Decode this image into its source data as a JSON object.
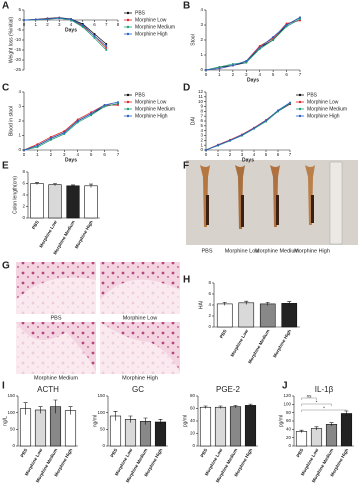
{
  "chart_data": [
    {
      "type": "line",
      "panel": "A",
      "xlabel": "Days",
      "ylabel": "Weight loss (%initial)",
      "x": [
        0,
        1,
        2,
        3,
        4,
        5,
        6,
        7
      ],
      "xlim": [
        0,
        8
      ],
      "xticks": [
        0,
        1,
        2,
        3,
        4,
        5,
        6,
        7,
        8
      ],
      "ylim": [
        -25,
        5
      ],
      "yticks": [
        5,
        0,
        -5,
        -10,
        -15,
        -20,
        -25
      ],
      "legend": true,
      "series": [
        {
          "name": "PBS",
          "color": "#111111",
          "values": [
            0,
            0.3,
            0.8,
            1.2,
            0.5,
            -2,
            -7,
            -12
          ]
        },
        {
          "name": "Morphine Low",
          "color": "#e0262a",
          "values": [
            0,
            0.2,
            0.6,
            1,
            0.2,
            -3,
            -8,
            -14
          ]
        },
        {
          "name": "Morphine Medium",
          "color": "#1fa27a",
          "values": [
            0,
            0.1,
            0.4,
            0.9,
            0,
            -3.5,
            -9,
            -15
          ]
        },
        {
          "name": "Morphine High",
          "color": "#2a62c9",
          "values": [
            0,
            0.2,
            0.5,
            1,
            0.3,
            -2.5,
            -8,
            -13
          ]
        }
      ]
    },
    {
      "type": "line",
      "panel": "B",
      "xlabel": "Days",
      "ylabel": "Stool",
      "x": [
        0,
        1,
        2,
        3,
        4,
        5,
        6,
        7
      ],
      "xlim": [
        0,
        7
      ],
      "xticks": [
        0,
        1,
        2,
        3,
        4,
        5,
        6,
        7
      ],
      "ylim": [
        0,
        4
      ],
      "yticks": [
        0,
        1,
        2,
        3,
        4
      ],
      "legend": false,
      "series": [
        {
          "name": "PBS",
          "color": "#111111",
          "values": [
            0,
            0.2,
            0.3,
            0.5,
            1.5,
            2,
            3,
            3.5
          ]
        },
        {
          "name": "Morphine Low",
          "color": "#e0262a",
          "values": [
            0,
            0.1,
            0.3,
            0.6,
            1.6,
            2.1,
            3.1,
            3.3
          ]
        },
        {
          "name": "Morphine Medium",
          "color": "#1fa27a",
          "values": [
            0,
            0.2,
            0.4,
            0.5,
            1.4,
            2,
            2.9,
            3.4
          ]
        },
        {
          "name": "Morphine High",
          "color": "#2a62c9",
          "values": [
            0,
            0.1,
            0.3,
            0.6,
            1.5,
            2.2,
            3,
            3.5
          ]
        }
      ]
    },
    {
      "type": "line",
      "panel": "C",
      "xlabel": "Days",
      "ylabel": "Blood in stool",
      "x": [
        0,
        1,
        2,
        3,
        4,
        5,
        6,
        7
      ],
      "xlim": [
        0,
        7
      ],
      "xticks": [
        0,
        1,
        2,
        3,
        4,
        5,
        6,
        7
      ],
      "ylim": [
        0,
        4
      ],
      "yticks": [
        0,
        1,
        2,
        3,
        4
      ],
      "legend": true,
      "series": [
        {
          "name": "PBS",
          "color": "#111111",
          "values": [
            0,
            0.3,
            0.8,
            1.2,
            2,
            2.5,
            3,
            3.2
          ]
        },
        {
          "name": "Morphine Low",
          "color": "#e0262a",
          "values": [
            0,
            0.4,
            0.9,
            1.3,
            2.1,
            2.6,
            3.1,
            3.1
          ]
        },
        {
          "name": "Morphine Medium",
          "color": "#1fa27a",
          "values": [
            0,
            0.2,
            0.7,
            1.1,
            1.9,
            2.4,
            3,
            3.2
          ]
        },
        {
          "name": "Morphine High",
          "color": "#2a62c9",
          "values": [
            0,
            0.3,
            0.8,
            1.2,
            2,
            2.5,
            3.1,
            3.3
          ]
        }
      ]
    },
    {
      "type": "line",
      "panel": "D",
      "xlabel": "Days",
      "ylabel": "DAI",
      "x": [
        0,
        1,
        2,
        3,
        4,
        5,
        6,
        7
      ],
      "xlim": [
        0,
        7
      ],
      "xticks": [
        0,
        1,
        2,
        3,
        4,
        5,
        6,
        7
      ],
      "ylim": [
        0,
        12
      ],
      "yticks": [
        0,
        1,
        2,
        3,
        4,
        5,
        6,
        7,
        8,
        9,
        10,
        11,
        12
      ],
      "legend": true,
      "series": [
        {
          "name": "PBS",
          "color": "#111111",
          "values": [
            0,
            1,
            2,
            3,
            4.5,
            6,
            8,
            9.5
          ]
        },
        {
          "name": "Morphine Low",
          "color": "#e0262a",
          "values": [
            0,
            1.1,
            2.1,
            3.2,
            4.6,
            6.2,
            8.1,
            9.6
          ]
        },
        {
          "name": "Morphine Medium",
          "color": "#1fa27a",
          "values": [
            0,
            0.9,
            1.9,
            3,
            4.4,
            5.9,
            8,
            9.7
          ]
        },
        {
          "name": "Morphine High",
          "color": "#2a62c9",
          "values": [
            0,
            1,
            2,
            3.1,
            4.5,
            6.1,
            8.2,
            9.8
          ]
        }
      ]
    },
    {
      "type": "bar",
      "panel": "E",
      "ylabel": "Colon length(cm)",
      "categories": [
        "PBS",
        "Morphine Low",
        "Morphine Medium",
        "Morphine High"
      ],
      "values": [
        6,
        5.8,
        5.6,
        5.6
      ],
      "errors": [
        0.2,
        0.2,
        0.15,
        0.3
      ],
      "colors": [
        "#ffffff",
        "#d9d9d9",
        "#222222",
        "#ffffff"
      ],
      "ylim": [
        0,
        8
      ],
      "yticks": [
        0,
        2,
        4,
        6,
        8
      ]
    },
    {
      "type": "bar",
      "panel": "H",
      "ylabel": "HAI",
      "categories": [
        "PBS",
        "Morphine Low",
        "Morphine Medium",
        "Morphine High"
      ],
      "values": [
        4.2,
        4.4,
        4.2,
        4.3
      ],
      "errors": [
        0.3,
        0.3,
        0.3,
        0.35
      ],
      "colors": [
        "#ffffff",
        "#d9d9d9",
        "#888888",
        "#222222"
      ],
      "ylim": [
        0,
        8
      ],
      "yticks": [
        0,
        2,
        4,
        6,
        8
      ]
    },
    {
      "type": "bar",
      "panel": "I",
      "title": "ACTH",
      "ylabel": "ng/L",
      "categories": [
        "PBS",
        "Morphine Low",
        "Morphine Medium",
        "Morphine High"
      ],
      "values": [
        112,
        108,
        118,
        106
      ],
      "errors": [
        18,
        10,
        20,
        12
      ],
      "colors": [
        "#ffffff",
        "#d9d9d9",
        "#888888",
        "#ffffff"
      ],
      "ylim": [
        0,
        150
      ],
      "yticks": [
        0,
        50,
        100,
        150
      ]
    },
    {
      "type": "bar",
      "title": "GC",
      "ylabel": "ng/ml",
      "categories": [
        "PBS",
        "Morphine Low",
        "Morphine Medium",
        "Morphine High"
      ],
      "values": [
        90,
        80,
        74,
        72
      ],
      "errors": [
        14,
        10,
        10,
        8
      ],
      "colors": [
        "#ffffff",
        "#d9d9d9",
        "#888888",
        "#222222"
      ],
      "ylim": [
        0,
        150
      ],
      "yticks": [
        0,
        50,
        100,
        150
      ]
    },
    {
      "type": "bar",
      "title": "PGE-2",
      "ylabel": "pg/ml",
      "categories": [
        "PBS",
        "Morphine Low",
        "Morphine Medium",
        "Morphine High"
      ],
      "values": [
        62,
        62,
        63,
        65
      ],
      "errors": [
        2,
        2,
        2,
        2
      ],
      "colors": [
        "#ffffff",
        "#d9d9d9",
        "#888888",
        "#222222"
      ],
      "ylim": [
        0,
        80
      ],
      "yticks": [
        0,
        20,
        40,
        60,
        80
      ]
    },
    {
      "type": "bar",
      "panel": "J",
      "title": "IL-1β",
      "ylabel": "pg/ml",
      "categories": [
        "PBS",
        "Morphine Low",
        "Morphine Medium",
        "Morphine High"
      ],
      "values": [
        35,
        42,
        52,
        78
      ],
      "errors": [
        3,
        4,
        4,
        6
      ],
      "colors": [
        "#ffffff",
        "#d9d9d9",
        "#888888",
        "#222222"
      ],
      "ylim": [
        0,
        120
      ],
      "yticks": [
        0,
        20,
        40,
        60,
        80,
        100,
        120
      ],
      "annotations": [
        {
          "text": "ns",
          "between": [
            "PBS",
            "Morphine Low"
          ]
        },
        {
          "text": "*",
          "between": [
            "PBS",
            "Morphine Medium"
          ]
        },
        {
          "text": "*",
          "between": [
            "PBS",
            "Morphine High"
          ]
        }
      ]
    }
  ],
  "photos": [
    {
      "panel": "F",
      "labels": [
        "PBS",
        "Morphine Low",
        "Morphine Medium",
        "Morphine High"
      ]
    },
    {
      "panel": "G",
      "labels": [
        "PBS",
        "Morphine Low",
        "Morphine Medium",
        "Morphine High"
      ]
    }
  ]
}
